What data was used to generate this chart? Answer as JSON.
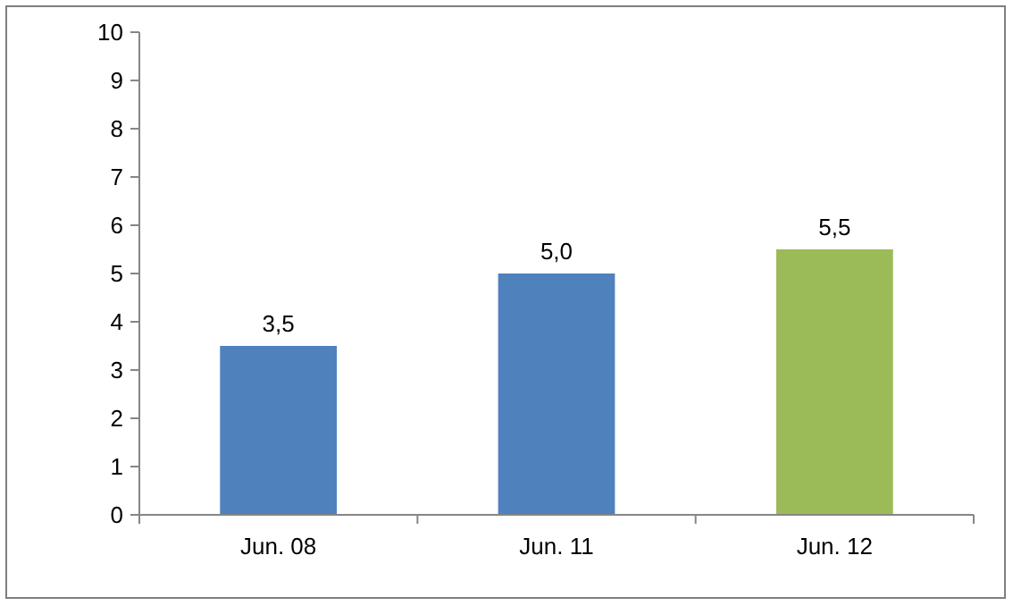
{
  "chart_data": {
    "type": "bar",
    "categories": [
      "Jun. 08",
      "Jun. 11",
      "Jun. 12"
    ],
    "values": [
      3.5,
      5.0,
      5.5
    ],
    "colors": [
      "#4f81bd",
      "#4f81bd",
      "#9bbb59"
    ],
    "value_labels": [
      "3,5",
      "5,0",
      "5,5"
    ],
    "ylim": [
      0,
      10
    ],
    "yticks": [
      0,
      1,
      2,
      3,
      4,
      5,
      6,
      7,
      8,
      9,
      10
    ],
    "grid": false
  }
}
